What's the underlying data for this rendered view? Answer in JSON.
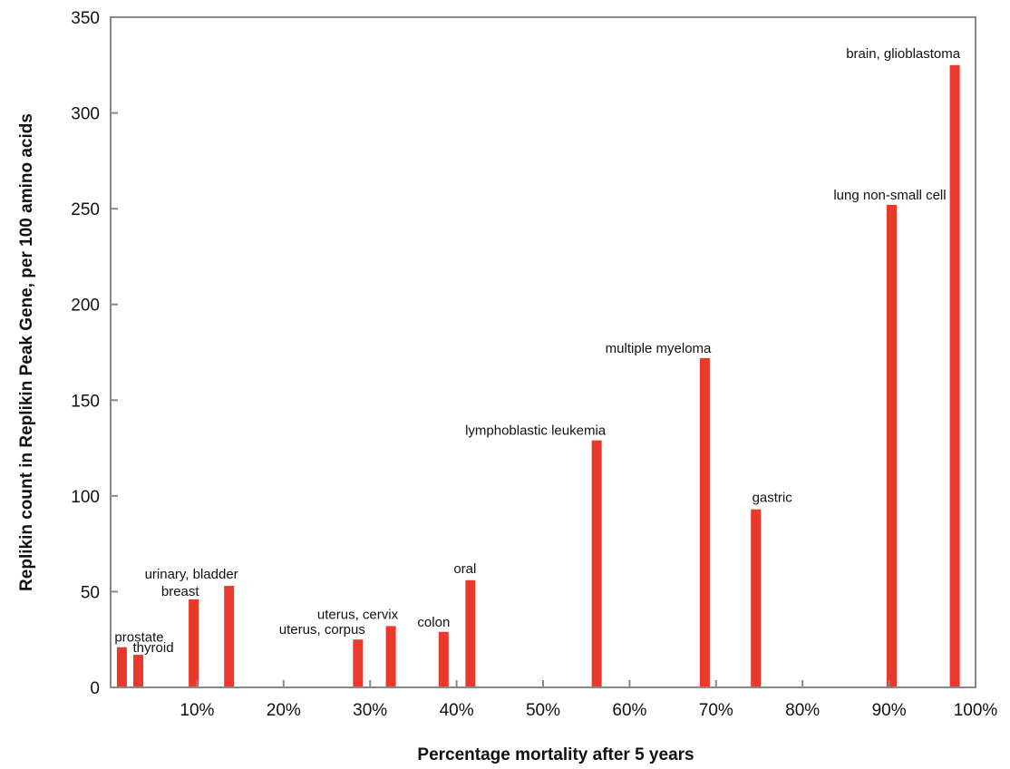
{
  "chart_data": {
    "type": "bar",
    "xlabel": "Percentage mortality after 5 years",
    "ylabel": "Replikin count in Replikin Peak Gene, per 100 amino acids",
    "xlim": [
      0,
      100
    ],
    "ylim": [
      0,
      350
    ],
    "x_ticks": [
      10,
      20,
      30,
      40,
      50,
      60,
      70,
      80,
      90,
      100
    ],
    "x_tick_labels": [
      "10%",
      "20%",
      "30%",
      "40%",
      "50%",
      "60%",
      "70%",
      "80%",
      "90%",
      "100%"
    ],
    "y_ticks": [
      0,
      50,
      100,
      150,
      200,
      250,
      300,
      350
    ],
    "y_tick_labels": [
      "0",
      "50",
      "100",
      "150",
      "200",
      "250",
      "300",
      "350"
    ],
    "grid": false,
    "legend": "none",
    "bar_color": "#e8392a",
    "bars": [
      {
        "label": "prostate",
        "x": 1.3,
        "value": 21
      },
      {
        "label": "thyroid",
        "x": 3.2,
        "value": 17
      },
      {
        "label": "breast",
        "x": 9.6,
        "value": 46
      },
      {
        "label": "urinary, bladder",
        "x": 13.7,
        "value": 53
      },
      {
        "label": "uterus, corpus",
        "x": 28.6,
        "value": 25
      },
      {
        "label": "uterus, cervix",
        "x": 32.4,
        "value": 32
      },
      {
        "label": "colon",
        "x": 38.5,
        "value": 29
      },
      {
        "label": "oral",
        "x": 41.6,
        "value": 56
      },
      {
        "label": "lymphoblastic leukemia",
        "x": 56.2,
        "value": 129
      },
      {
        "label": "multiple myeloma",
        "x": 68.7,
        "value": 172
      },
      {
        "label": "gastric",
        "x": 74.6,
        "value": 93
      },
      {
        "label": "lung non-small cell",
        "x": 90.3,
        "value": 252
      },
      {
        "label": "brain, glioblastoma",
        "x": 97.6,
        "value": 325
      }
    ]
  }
}
